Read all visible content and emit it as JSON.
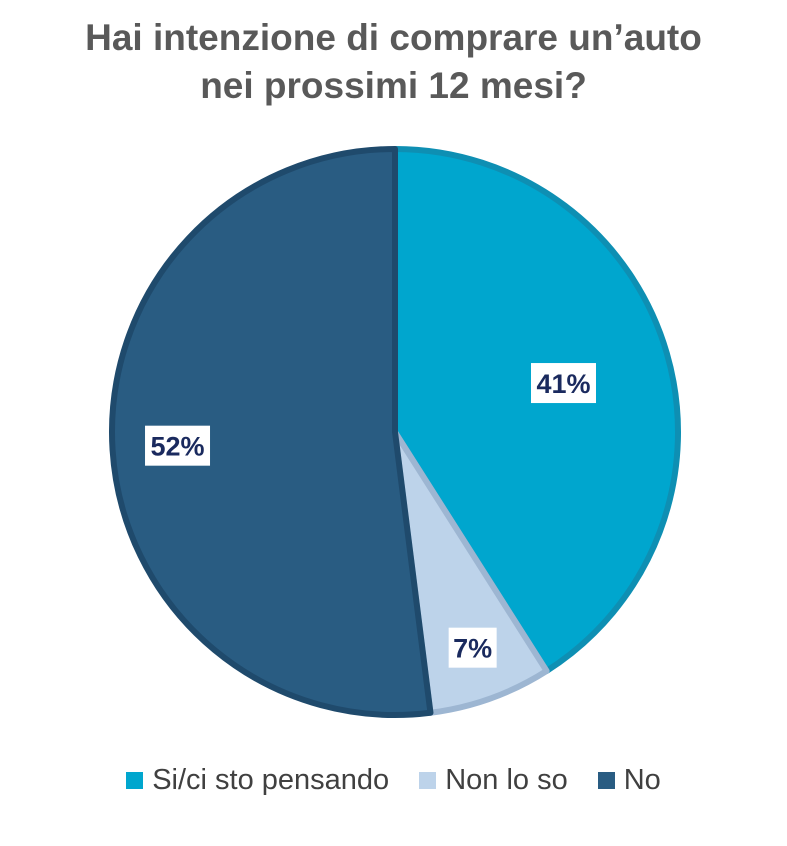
{
  "title_lines": [
    "Hai intenzione di comprare un’auto",
    "nei prossimi 12 mesi?"
  ],
  "chart_data": {
    "type": "pie",
    "title": "Hai intenzione di comprare un’auto nei prossimi 12 mesi?",
    "start_angle": "12 o'clock, clockwise",
    "slices": [
      {
        "label": "Si/ci sto pensando",
        "value": 41,
        "display": "41%",
        "color": "#00A6CE",
        "edge": "#0E8FB3"
      },
      {
        "label": "Non lo so",
        "value": 7,
        "display": "7%",
        "color": "#BDD3EA",
        "edge": "#9DB6D2"
      },
      {
        "label": "No",
        "value": 52,
        "display": "52%",
        "color": "#295C82",
        "edge": "#1F4A6C"
      }
    ],
    "label_color": "#1A2A5E",
    "legend_position": "bottom"
  }
}
